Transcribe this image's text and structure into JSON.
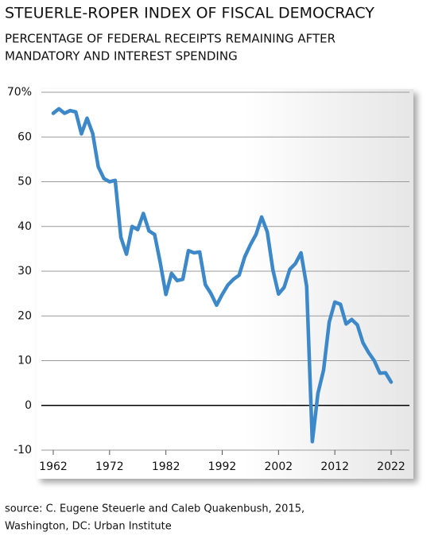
{
  "chart_data": {
    "type": "line",
    "title": "STEUERLE-ROPER INDEX OF FISCAL DEMOCRACY",
    "subtitle": [
      "PERCENTAGE OF FEDERAL RECEIPTS REMAINING AFTER",
      "MANDATORY AND INTEREST SPENDING"
    ],
    "source": [
      "source: C. Eugene Steuerle and Caleb Quakenbush, 2015,",
      "Washington, DC: Urban Institute"
    ],
    "x": [
      1962,
      1963,
      1964,
      1965,
      1966,
      1967,
      1968,
      1969,
      1970,
      1971,
      1972,
      1973,
      1974,
      1975,
      1976,
      1977,
      1978,
      1979,
      1980,
      1981,
      1982,
      1983,
      1984,
      1985,
      1986,
      1987,
      1988,
      1989,
      1990,
      1991,
      1992,
      1993,
      1994,
      1995,
      1996,
      1997,
      1998,
      1999,
      2000,
      2001,
      2002,
      2003,
      2004,
      2005,
      2006,
      2007,
      2008,
      2009,
      2010,
      2011,
      2012,
      2013,
      2014,
      2015,
      2016,
      2017,
      2018,
      2019,
      2020,
      2021,
      2022
    ],
    "series": [
      {
        "color": "#3d88c9",
        "values": [
          65.3,
          66.3,
          65.3,
          65.9,
          65.6,
          60.7,
          64.2,
          60.8,
          53.3,
          50.7,
          50.0,
          50.3,
          37.6,
          33.8,
          40,
          39.3,
          42.9,
          39,
          38.2,
          31.9,
          24.8,
          29.5,
          27.9,
          28.2,
          34.6,
          34.1,
          34.3,
          27,
          25,
          22.4,
          24.8,
          26.9,
          28.2,
          29.1,
          33.2,
          35.9,
          38.2,
          42.1,
          38.8,
          30.3,
          24.9,
          26.4,
          30.4,
          31.7,
          34.1,
          26.6,
          -8.1,
          2.7,
          7.9,
          18.6,
          23.1,
          22.6,
          18.2,
          19.2,
          18,
          14,
          11.8,
          10,
          7.2,
          7.3,
          5.2
        ]
      }
    ],
    "xlim": [
      1962,
      2022
    ],
    "xticks": [
      1962,
      1972,
      1982,
      1992,
      2002,
      2012,
      2022
    ],
    "ylim": [
      -10,
      70
    ],
    "yticks": [
      -10,
      0,
      10,
      20,
      30,
      40,
      50,
      60,
      {
        "value": 70,
        "label": "70%"
      }
    ],
    "grid": true
  }
}
